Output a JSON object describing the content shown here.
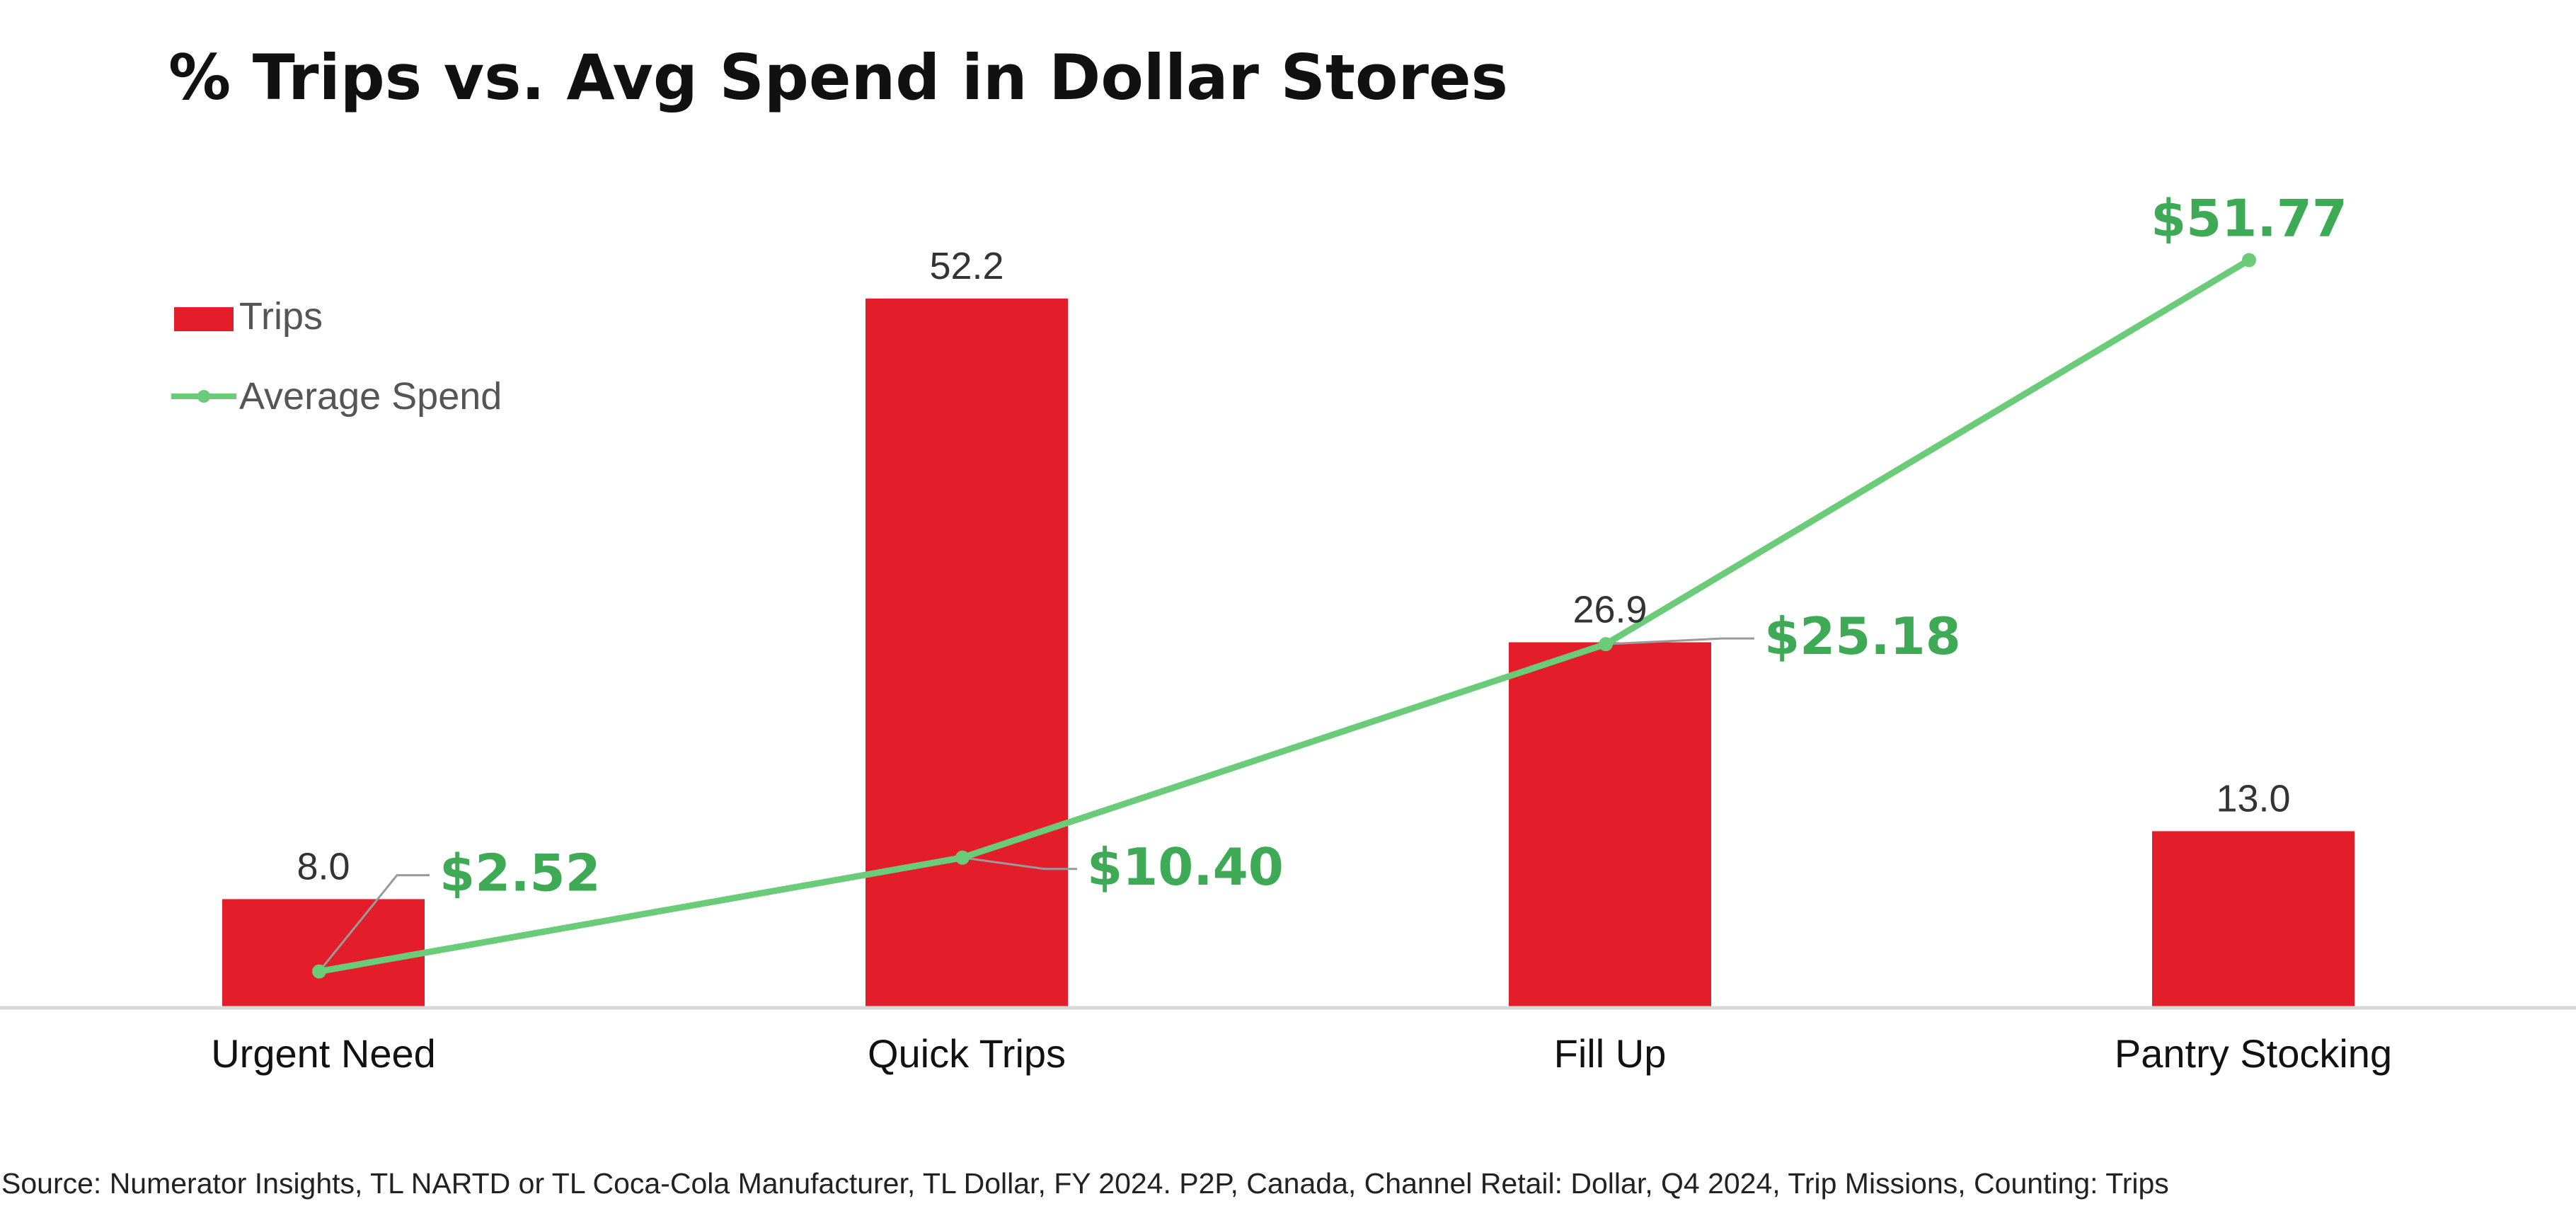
{
  "colors": {
    "bar": "#e31e2a",
    "line": "#6acc78",
    "line_label": "#3faa55",
    "axis": "#d8d8d8",
    "leader": "#9a9a9a"
  },
  "legend": {
    "placement": "top-left",
    "bar_label": "Trips",
    "line_label": "Average Spend"
  },
  "source": "Source: Numerator Insights, TL NARTD or TL Coca-Cola Manufacturer, TL Dollar, FY 2024. P2P, Canada, Channel Retail: Dollar, Q4 2024, Trip Missions, Counting: Trips",
  "chart_data": {
    "type": "bar",
    "title": "% Trips vs. Avg Spend in Dollar Stores",
    "xlabel": "",
    "ylabel": "",
    "grid": false,
    "categories": [
      "Urgent Need",
      "Quick Trips",
      "Fill Up",
      "Pantry Stocking"
    ],
    "series": [
      {
        "name": "Trips",
        "type": "bar",
        "values": [
          8.0,
          52.2,
          26.9,
          13.0
        ],
        "labels": [
          "8.0",
          "52.2",
          "26.9",
          "13.0"
        ],
        "ylim": [
          0,
          55
        ]
      },
      {
        "name": "Average Spend",
        "type": "line",
        "values": [
          2.52,
          10.4,
          25.18,
          51.77
        ],
        "labels": [
          "$2.52",
          "$10.40",
          "$25.18",
          "$51.77"
        ],
        "ylim": [
          0,
          54
        ]
      }
    ]
  }
}
